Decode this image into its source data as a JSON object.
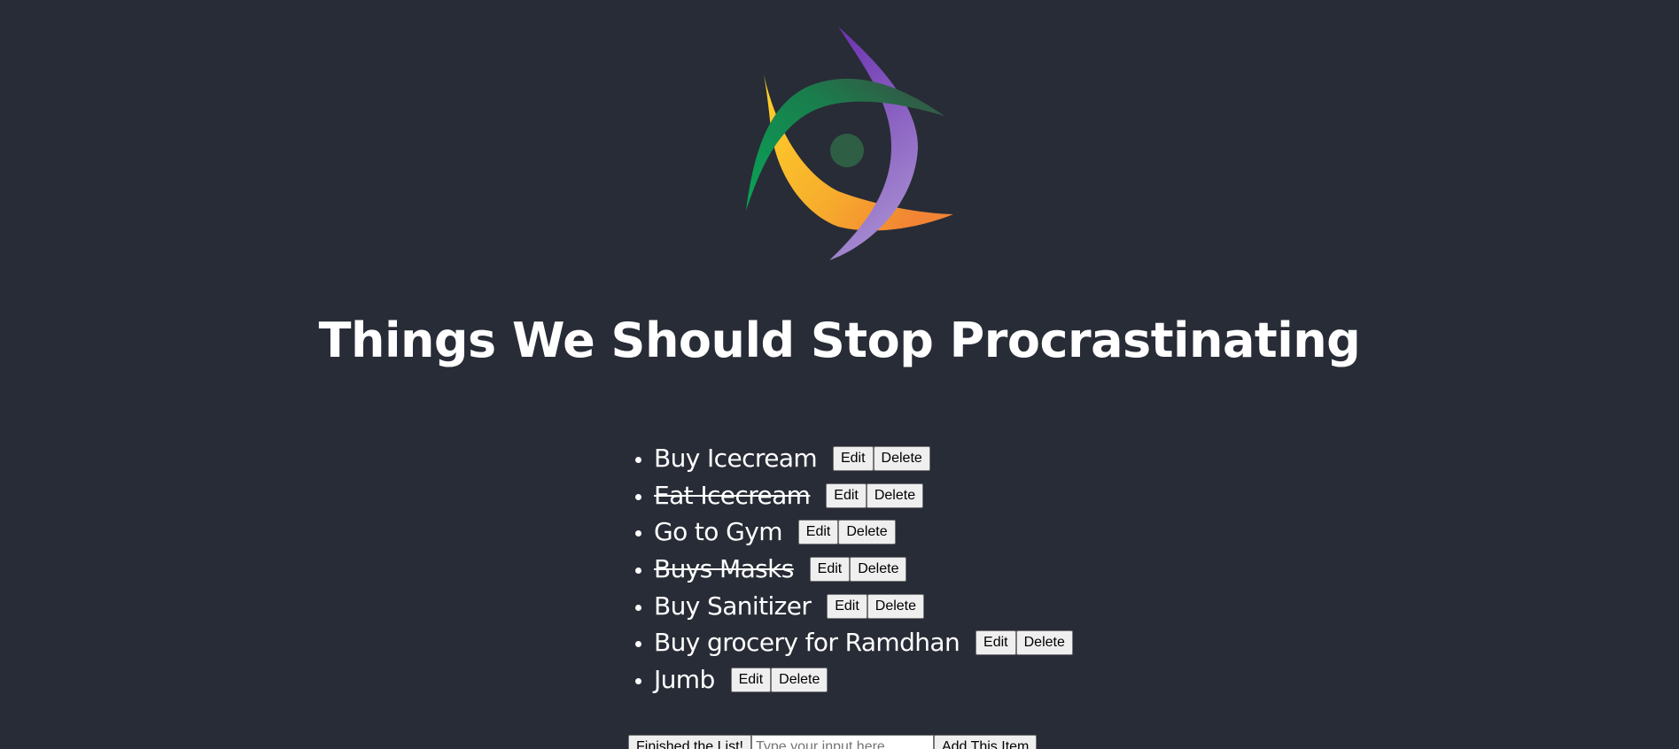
{
  "logo": {
    "icon": "pinwheel-logo-icon",
    "colors": {
      "green": "#0e9a56",
      "purple": "#7b4db5",
      "yellow": "#f4b82a",
      "orange": "#f28c36",
      "dot": "#2e5e44"
    }
  },
  "header": {
    "title": "Things We Should Stop Procrastinating"
  },
  "todos": {
    "items": [
      {
        "label": "Buy Icecream",
        "done": false
      },
      {
        "label": "Eat Icecream",
        "done": true
      },
      {
        "label": "Go to Gym",
        "done": false
      },
      {
        "label": "Buys Masks",
        "done": true
      },
      {
        "label": "Buy Sanitizer",
        "done": false
      },
      {
        "label": "Buy grocery for Ramdhan",
        "done": false
      },
      {
        "label": "Jumb",
        "done": false
      }
    ],
    "edit_label": "Edit",
    "delete_label": "Delete"
  },
  "controls": {
    "finish_label": "Finished the List!",
    "input_placeholder": "Type your input here",
    "input_value": "",
    "add_label": "Add This Item"
  },
  "colors": {
    "background": "#282c36",
    "text": "#ffffff",
    "button_bg": "#efefef"
  }
}
